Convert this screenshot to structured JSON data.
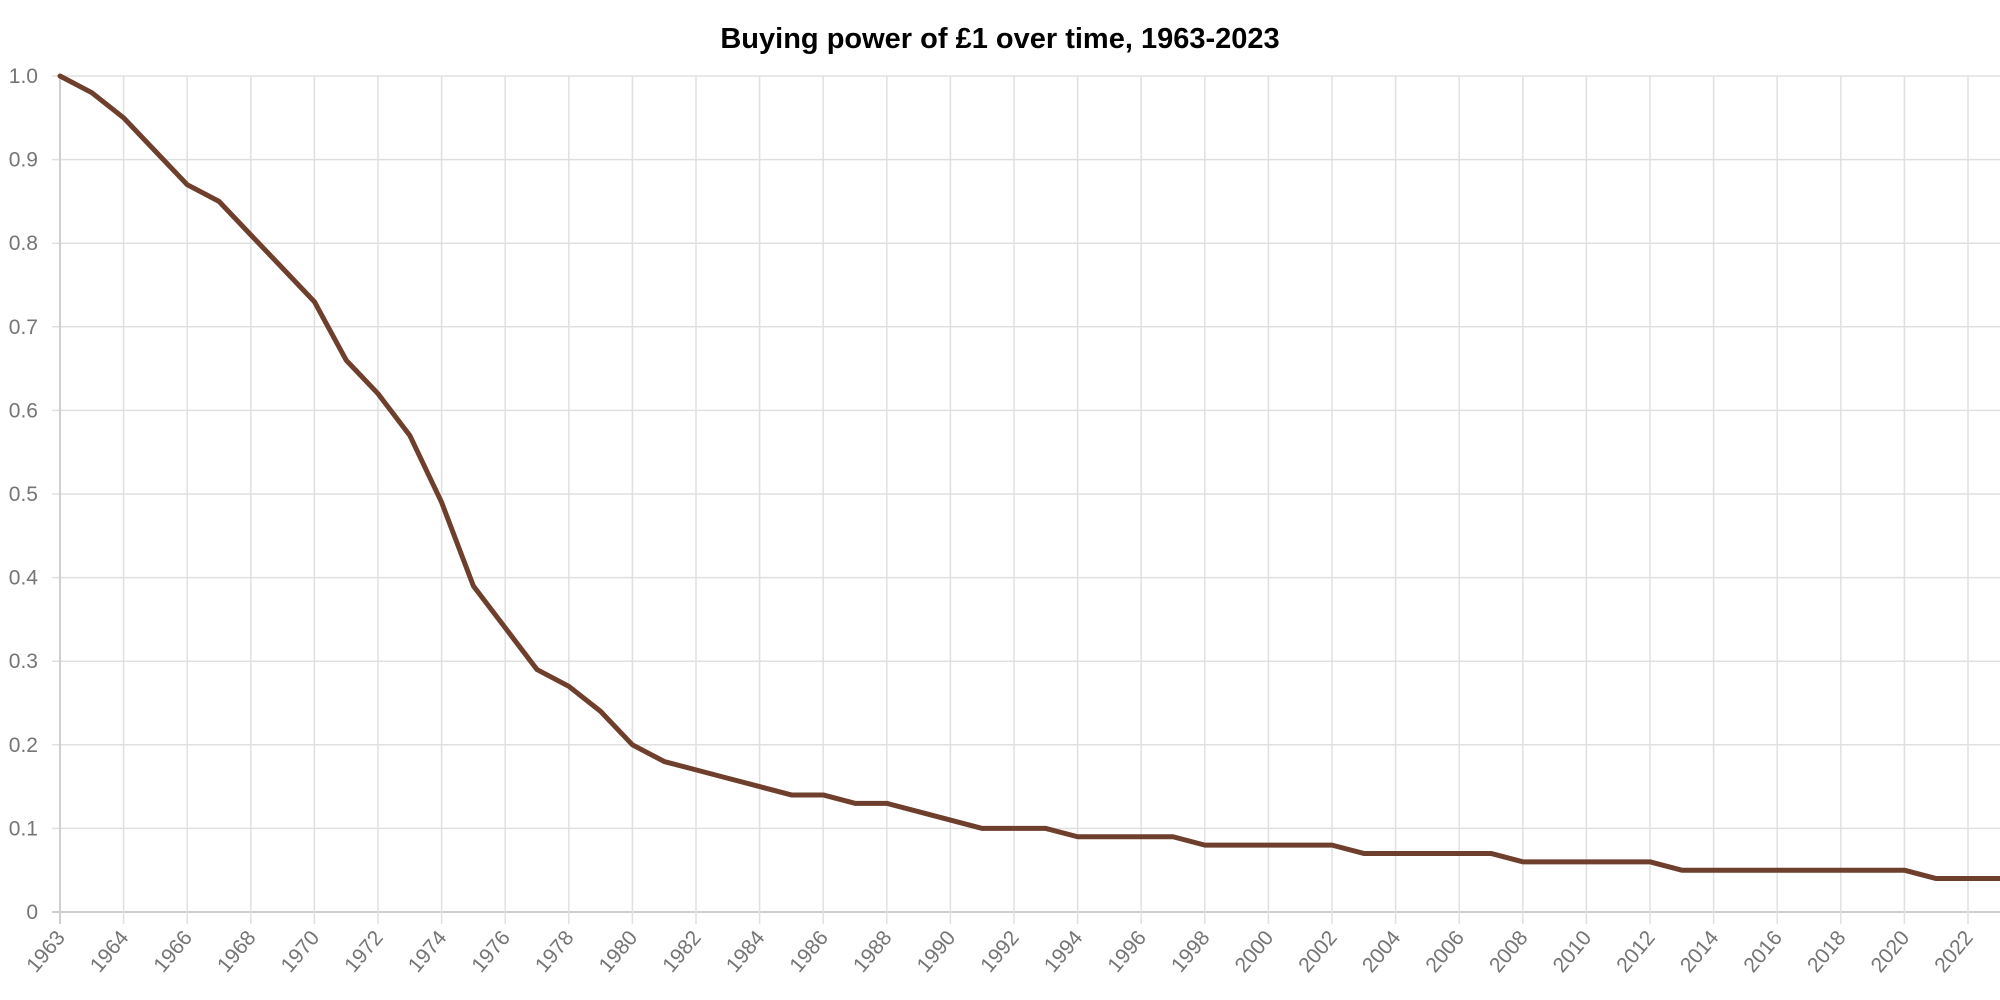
{
  "chart_data": {
    "type": "line",
    "title": "Buying power of £1 over time, 1963-2023",
    "xlabel": "",
    "ylabel": "",
    "x_tick_labels": [
      "1963",
      "1964",
      "1966",
      "1968",
      "1970",
      "1972",
      "1974",
      "1976",
      "1978",
      "1980",
      "1982",
      "1984",
      "1986",
      "1988",
      "1990",
      "1992",
      "1994",
      "1996",
      "1998",
      "2000",
      "2002",
      "2004",
      "2006",
      "2008",
      "2010",
      "2012",
      "2014",
      "2016",
      "2018",
      "2020",
      "2022"
    ],
    "y_tick_labels": [
      "0",
      "0.1",
      "0.2",
      "0.3",
      "0.4",
      "0.5",
      "0.6",
      "0.7",
      "0.8",
      "0.9",
      "1.0"
    ],
    "ylim": [
      0,
      1.0
    ],
    "grid": true,
    "series": [
      {
        "name": "Buying power of £1",
        "color": "#6e3f2c",
        "values": [
          1.0,
          0.98,
          0.95,
          0.91,
          0.87,
          0.85,
          0.81,
          0.77,
          0.73,
          0.66,
          0.62,
          0.57,
          0.49,
          0.39,
          0.34,
          0.29,
          0.27,
          0.24,
          0.2,
          0.18,
          0.17,
          0.16,
          0.15,
          0.14,
          0.14,
          0.13,
          0.13,
          0.12,
          0.11,
          0.1,
          0.1,
          0.1,
          0.09,
          0.09,
          0.09,
          0.09,
          0.08,
          0.08,
          0.08,
          0.08,
          0.08,
          0.07,
          0.07,
          0.07,
          0.07,
          0.07,
          0.06,
          0.06,
          0.06,
          0.06,
          0.06,
          0.05,
          0.05,
          0.05,
          0.05,
          0.05,
          0.05,
          0.05,
          0.05,
          0.04,
          0.04,
          0.04
        ]
      }
    ]
  }
}
